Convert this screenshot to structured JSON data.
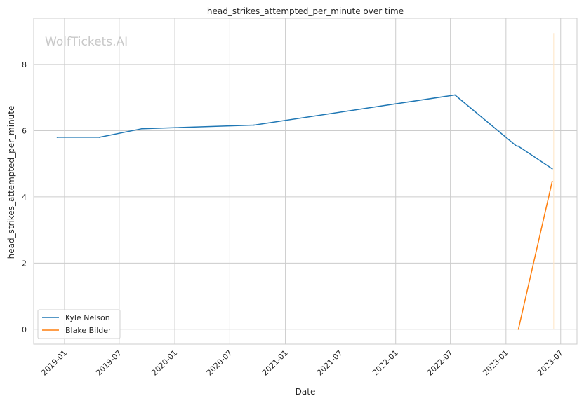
{
  "chart_data": {
    "type": "line",
    "title": "head_strikes_attempted_per_minute over time",
    "xlabel": "Date",
    "ylabel": "head_strikes_attempted_per_minute",
    "watermark": "WolfTickets.AI",
    "x_ticks": [
      "2019-01",
      "2019-07",
      "2020-01",
      "2020-07",
      "2021-01",
      "2021-07",
      "2022-01",
      "2022-07",
      "2023-01",
      "2023-07"
    ],
    "y_ticks": [
      0,
      2,
      4,
      6,
      8
    ],
    "xlim": [
      "2018-09-21",
      "2023-08-24"
    ],
    "ylim": [
      -0.45,
      9.4
    ],
    "grid": true,
    "legend_position": "lower-left",
    "series": [
      {
        "name": "Kyle Nelson",
        "color": "#1f77b4",
        "points": [
          {
            "x": "2018-12-08",
            "y": 5.8
          },
          {
            "x": "2019-04-27",
            "y": 5.8
          },
          {
            "x": "2019-09-14",
            "y": 6.06
          },
          {
            "x": "2020-09-19",
            "y": 6.17
          },
          {
            "x": "2022-07-16",
            "y": 7.08
          },
          {
            "x": "2023-02-04",
            "y": 5.54
          },
          {
            "x": "2023-02-11",
            "y": 5.53
          },
          {
            "x": "2023-06-03",
            "y": 4.85
          }
        ]
      },
      {
        "name": "Blake Bilder",
        "color": "#ff7f0e",
        "points": [
          {
            "x": "2023-02-11",
            "y": 0.0
          },
          {
            "x": "2023-06-03",
            "y": 4.47
          }
        ]
      }
    ],
    "vline": {
      "x": "2023-06-08",
      "y_top": 8.95,
      "color": "#ffe4c4"
    }
  }
}
